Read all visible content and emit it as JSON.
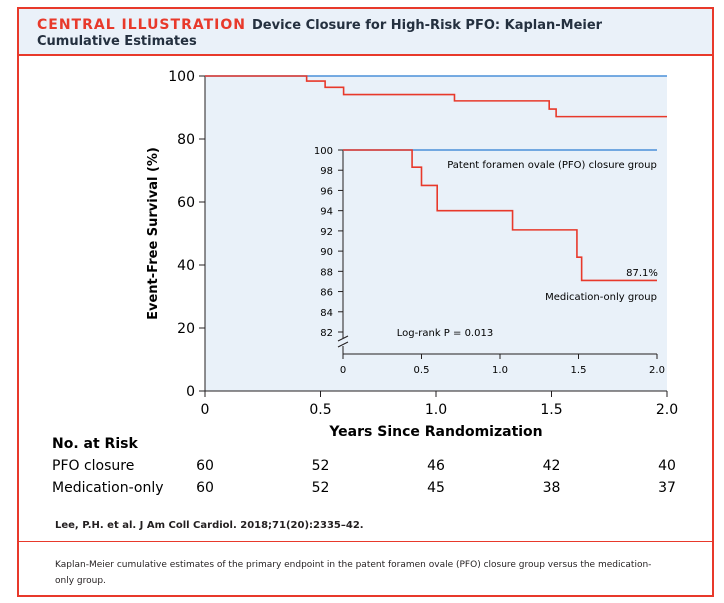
{
  "header": {
    "tag": "CENTRAL ILLUSTRATION",
    "title_line1": "Device Closure for High-Risk PFO: Kaplan-Meier",
    "title_line2": "Cumulative Estimates"
  },
  "chart_data": [
    {
      "type": "line",
      "title": "",
      "xlabel": "Years Since Randomization",
      "ylabel": "Event-Free Survival (%)",
      "xlim": [
        0,
        2.0
      ],
      "ylim": [
        0,
        100
      ],
      "x_ticks": [
        "0",
        "0.5",
        "1.0",
        "1.5",
        "2.0"
      ],
      "y_ticks": [
        "0",
        "20",
        "40",
        "60",
        "80",
        "100"
      ],
      "series": [
        {
          "name": "PFO closure",
          "color": "#4a90d9",
          "step": true,
          "x": [
            0,
            2.0
          ],
          "y": [
            100,
            100
          ]
        },
        {
          "name": "Medication-only",
          "color": "#e8392b",
          "step": true,
          "x": [
            0,
            0.44,
            0.52,
            0.6,
            1.08,
            1.49,
            1.52,
            1.53,
            2.0
          ],
          "y": [
            100,
            98.4,
            96.4,
            94.1,
            92.1,
            89.5,
            87.1,
            87.1,
            87.1
          ]
        }
      ]
    },
    {
      "type": "line",
      "title": "",
      "xlim": [
        0,
        2.0
      ],
      "ylim": [
        82,
        100
      ],
      "x_ticks": [
        "0",
        "0.5",
        "1.0",
        "1.5",
        "2.0"
      ],
      "y_ticks": [
        "82",
        "84",
        "86",
        "88",
        "90",
        "92",
        "94",
        "96",
        "98",
        "100"
      ],
      "axis_break": true,
      "series": [
        {
          "name": "Patent foramen ovale (PFO) closure group",
          "color": "#4a90d9",
          "step": true,
          "x": [
            0,
            2.0
          ],
          "y": [
            100,
            100
          ]
        },
        {
          "name": "Medication-only group",
          "color": "#e8392b",
          "step": true,
          "x": [
            0,
            0.44,
            0.5,
            0.6,
            1.08,
            1.49,
            1.52,
            2.0
          ],
          "y": [
            100,
            98.3,
            96.5,
            94.0,
            92.1,
            89.4,
            87.1,
            87.1
          ]
        }
      ],
      "annotations": {
        "final_value": "87.1%",
        "logrank": "Log-rank P = 0.013"
      }
    }
  ],
  "risk_table": {
    "title": "No. at Risk",
    "columns": [
      "0",
      "0.5",
      "1.0",
      "1.5",
      "2.0"
    ],
    "rows": [
      {
        "label": "PFO closure",
        "values": [
          "60",
          "52",
          "46",
          "42",
          "40"
        ]
      },
      {
        "label": "Medication-only",
        "values": [
          "60",
          "52",
          "45",
          "38",
          "37"
        ]
      }
    ]
  },
  "citation": "Lee, P.H. et al. J Am Coll Cardiol. 2018;71(20):2335–42.",
  "caption": "Kaplan-Meier cumulative estimates of the primary endpoint in the patent foramen ovale (PFO) closure group versus the medication-only group.",
  "colors": {
    "accent": "#e8392b",
    "header_bg": "#eaf1f9",
    "plot_bg": "#e9f1f9",
    "pfo": "#4a90d9",
    "medication": "#e8392b"
  }
}
